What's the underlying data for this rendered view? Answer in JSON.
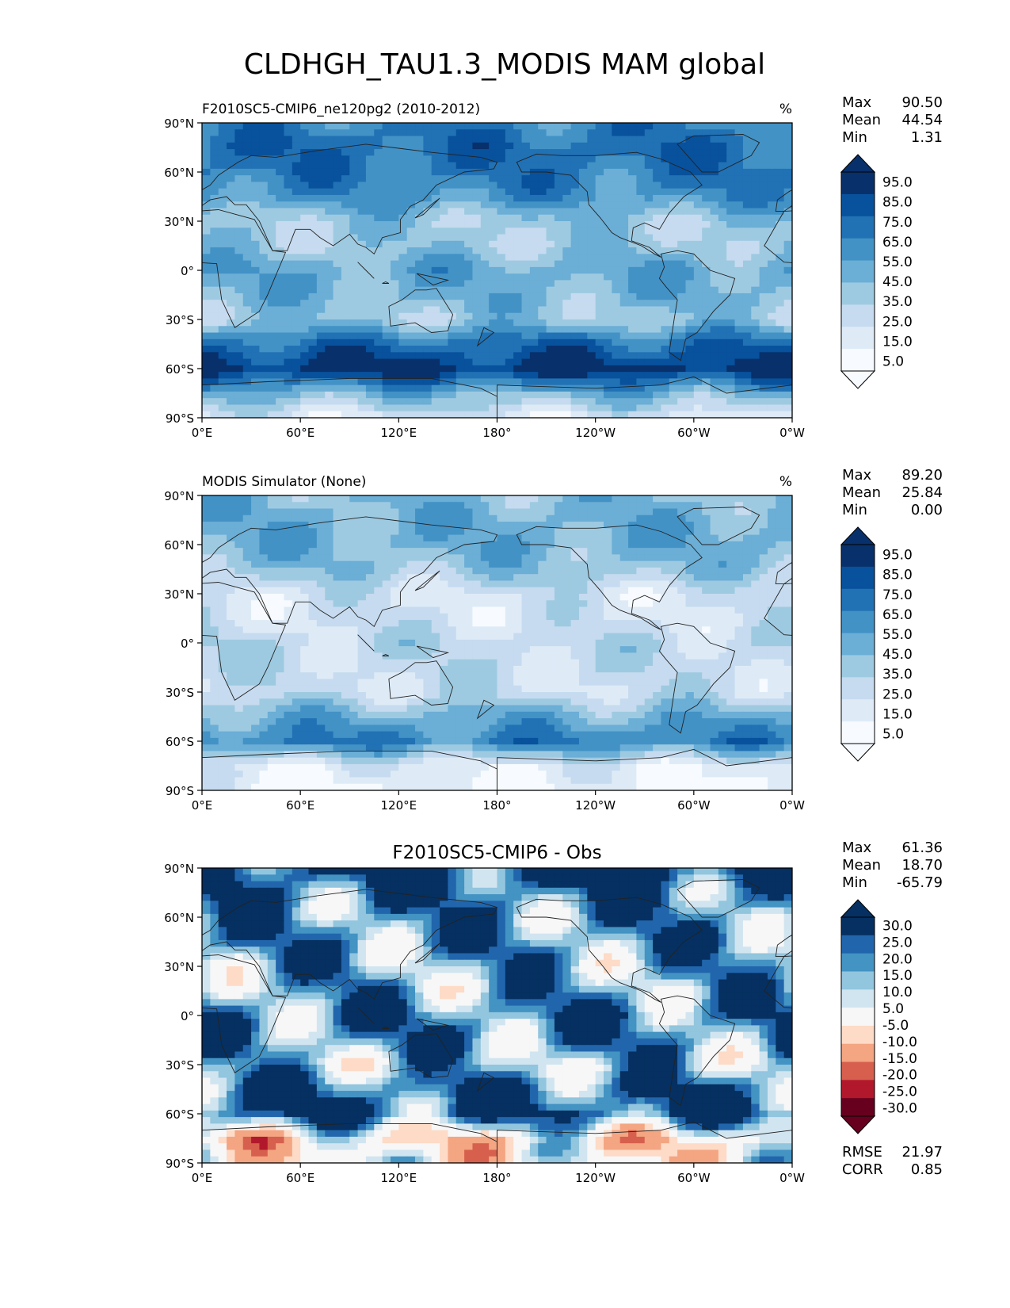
{
  "figure": {
    "title": "CLDHGH_TAU1.3_MODIS MAM global"
  },
  "colors": {
    "blues": [
      "#f7fbff",
      "#deebf7",
      "#c6dbef",
      "#9ecae1",
      "#6baed6",
      "#4292c6",
      "#2171b5",
      "#08519c",
      "#08306b"
    ],
    "rdbu": [
      "#67001f",
      "#b2182b",
      "#d6604d",
      "#f4a582",
      "#fddbc7",
      "#f7f7f7",
      "#d1e5f0",
      "#92c5de",
      "#4393c3",
      "#2166ac",
      "#053061"
    ],
    "coast": "#222222"
  },
  "axes": {
    "lat_ticks": [
      "90°N",
      "60°N",
      "30°N",
      "0°",
      "30°S",
      "60°S",
      "90°S"
    ],
    "lon_ticks": [
      "0°E",
      "60°E",
      "120°E",
      "180°",
      "120°W",
      "60°W",
      "0°W"
    ]
  },
  "panels": [
    {
      "title_left": "F2010SC5-CMIP6_ne120pg2 (2010-2012)",
      "title_center": "",
      "units": "%",
      "stats": [
        {
          "label": "Max",
          "value": "90.50"
        },
        {
          "label": "Mean",
          "value": "44.54"
        },
        {
          "label": "Min",
          "value": "1.31"
        }
      ],
      "colorbar": {
        "labels": [
          "95.0",
          "85.0",
          "75.0",
          "65.0",
          "55.0",
          "45.0",
          "35.0",
          "25.0",
          "15.0",
          "5.0"
        ],
        "palette": "blues"
      },
      "extra_stats": []
    },
    {
      "title_left": "MODIS Simulator (None)",
      "title_center": "",
      "units": "%",
      "stats": [
        {
          "label": "Max",
          "value": "89.20"
        },
        {
          "label": "Mean",
          "value": "25.84"
        },
        {
          "label": "Min",
          "value": "0.00"
        }
      ],
      "colorbar": {
        "labels": [
          "95.0",
          "85.0",
          "75.0",
          "65.0",
          "55.0",
          "45.0",
          "35.0",
          "25.0",
          "15.0",
          "5.0"
        ],
        "palette": "blues"
      },
      "extra_stats": []
    },
    {
      "title_left": "",
      "title_center": "F2010SC5-CMIP6 - Obs",
      "units": "",
      "stats": [
        {
          "label": "Max",
          "value": "61.36"
        },
        {
          "label": "Mean",
          "value": "18.70"
        },
        {
          "label": "Min",
          "value": "-65.79"
        }
      ],
      "colorbar": {
        "labels": [
          "30.0",
          "25.0",
          "20.0",
          "15.0",
          "10.0",
          "5.0",
          "-5.0",
          "-10.0",
          "-15.0",
          "-20.0",
          "-25.0",
          "-30.0"
        ],
        "palette": "rdbu"
      },
      "extra_stats": [
        {
          "label": "RMSE",
          "value": "21.97"
        },
        {
          "label": "CORR",
          "value": "0.85"
        }
      ]
    }
  ],
  "chart_data": [
    {
      "type": "heatmap",
      "title": "F2010SC5-CMIP6_ne120pg2 (2010-2012)",
      "xlim": [
        0,
        360
      ],
      "ylim": [
        -90,
        90
      ],
      "levels": [
        5,
        15,
        25,
        35,
        45,
        55,
        65,
        75,
        85,
        95
      ],
      "units": "%",
      "max": 90.5,
      "mean": 44.54,
      "min": 1.31,
      "zonal_mean_profile": {
        "lat": [
          90,
          75,
          60,
          45,
          30,
          15,
          0,
          -15,
          -30,
          -45,
          -60,
          -75,
          -90
        ],
        "value": [
          55,
          62,
          58,
          50,
          30,
          30,
          42,
          38,
          30,
          62,
          80,
          40,
          10
        ]
      }
    },
    {
      "type": "heatmap",
      "title": "MODIS Simulator (None)",
      "xlim": [
        0,
        360
      ],
      "ylim": [
        -90,
        90
      ],
      "levels": [
        5,
        15,
        25,
        35,
        45,
        55,
        65,
        75,
        85,
        95
      ],
      "units": "%",
      "max": 89.2,
      "mean": 25.84,
      "min": 0.0,
      "zonal_mean_profile": {
        "lat": [
          90,
          75,
          60,
          45,
          30,
          15,
          0,
          -15,
          -30,
          -45,
          -60,
          -75,
          -90
        ],
        "value": [
          35,
          40,
          40,
          32,
          15,
          15,
          22,
          20,
          18,
          40,
          55,
          10,
          3
        ]
      }
    },
    {
      "type": "heatmap",
      "title": "F2010SC5-CMIP6 - Obs",
      "xlim": [
        0,
        360
      ],
      "ylim": [
        -90,
        90
      ],
      "levels": [
        -30,
        -25,
        -20,
        -15,
        -10,
        -5,
        5,
        10,
        15,
        20,
        25,
        30
      ],
      "max": 61.36,
      "mean": 18.7,
      "min": -65.79,
      "rmse": 21.97,
      "corr": 0.85,
      "zonal_mean_profile": {
        "lat": [
          90,
          75,
          60,
          45,
          30,
          15,
          0,
          -15,
          -30,
          -45,
          -60,
          -75,
          -90
        ],
        "value": [
          30,
          22,
          18,
          18,
          15,
          15,
          20,
          18,
          12,
          22,
          25,
          -5,
          0
        ]
      }
    }
  ]
}
